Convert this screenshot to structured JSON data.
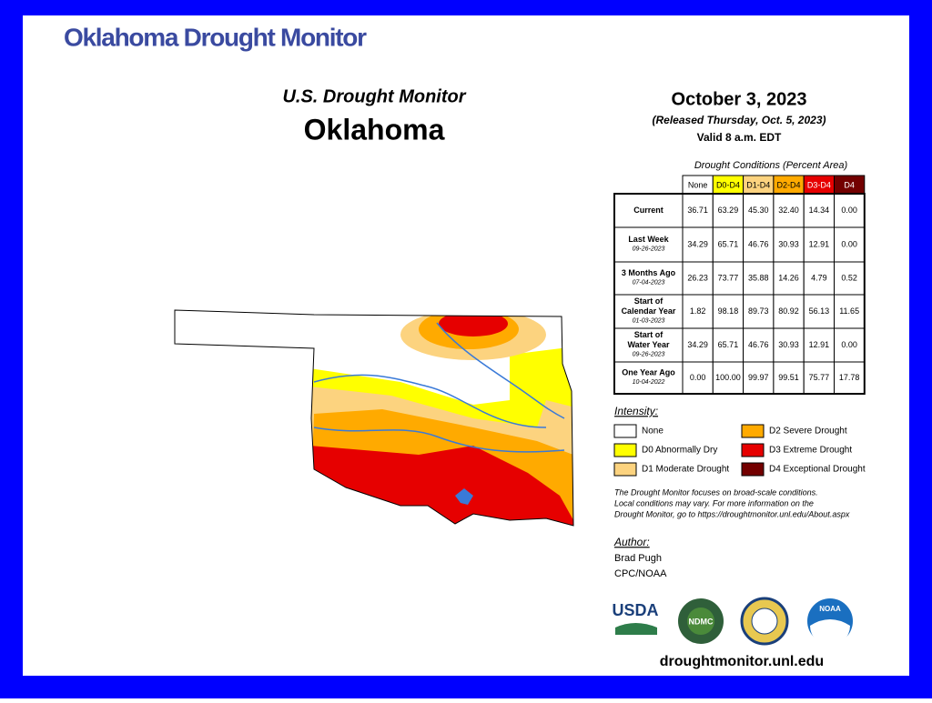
{
  "header": {
    "title": "Oklahoma Drought Monitor"
  },
  "map": {
    "title": "U.S. Drought Monitor",
    "state": "Oklahoma"
  },
  "info": {
    "date": "October 3, 2023",
    "released": "(Released Thursday, Oct. 5, 2023)",
    "valid": "Valid 8 a.m. EDT"
  },
  "table": {
    "caption": "Drought Conditions (Percent Area)",
    "columns": [
      {
        "label": "None",
        "color": "#ffffff",
        "text": "#000000"
      },
      {
        "label": "D0-D4",
        "color": "#ffff00",
        "text": "#000000"
      },
      {
        "label": "D1-D4",
        "color": "#fcd37f",
        "text": "#000000"
      },
      {
        "label": "D2-D4",
        "color": "#ffaa00",
        "text": "#000000"
      },
      {
        "label": "D3-D4",
        "color": "#e60000",
        "text": "#ffffff"
      },
      {
        "label": "D4",
        "color": "#730000",
        "text": "#ffffff"
      }
    ],
    "rows": [
      {
        "label": [
          "Current"
        ],
        "date": null,
        "values": [
          "36.71",
          "63.29",
          "45.30",
          "32.40",
          "14.34",
          "0.00"
        ]
      },
      {
        "label": [
          "Last Week"
        ],
        "date": "09-26-2023",
        "values": [
          "34.29",
          "65.71",
          "46.76",
          "30.93",
          "12.91",
          "0.00"
        ]
      },
      {
        "label": [
          "3 Months Ago"
        ],
        "date": "07-04-2023",
        "values": [
          "26.23",
          "73.77",
          "35.88",
          "14.26",
          "4.79",
          "0.52"
        ]
      },
      {
        "label": [
          "Start of",
          "Calendar Year"
        ],
        "date": "01-03-2023",
        "values": [
          "1.82",
          "98.18",
          "89.73",
          "80.92",
          "56.13",
          "11.65"
        ]
      },
      {
        "label": [
          "Start of",
          "Water Year"
        ],
        "date": "09-26-2023",
        "values": [
          "34.29",
          "65.71",
          "46.76",
          "30.93",
          "12.91",
          "0.00"
        ]
      },
      {
        "label": [
          "One Year Ago"
        ],
        "date": "10-04-2022",
        "values": [
          "0.00",
          "100.00",
          "99.97",
          "99.51",
          "75.77",
          "17.78"
        ]
      }
    ]
  },
  "legend": {
    "title": "Intensity:",
    "items": [
      {
        "label": "None",
        "color": "#ffffff"
      },
      {
        "label": "D0 Abnormally Dry",
        "color": "#ffff00"
      },
      {
        "label": "D1 Moderate Drought",
        "color": "#fcd37f"
      },
      {
        "label": "D2 Severe Drought",
        "color": "#ffaa00"
      },
      {
        "label": "D3 Extreme Drought",
        "color": "#e60000"
      },
      {
        "label": "D4 Exceptional Drought",
        "color": "#730000"
      }
    ]
  },
  "note": [
    "The Drought Monitor focuses on broad-scale conditions.",
    "Local conditions may vary. For more information on the",
    "Drought Monitor, go to https://droughtmonitor.unl.edu/About.aspx"
  ],
  "author": {
    "title": "Author:",
    "lines": [
      "Brad Pugh",
      "CPC/NOAA"
    ]
  },
  "logos": [
    "USDA",
    "NDMC",
    "NOAA"
  ],
  "footer": {
    "url": "droughtmonitor.unl.edu"
  }
}
